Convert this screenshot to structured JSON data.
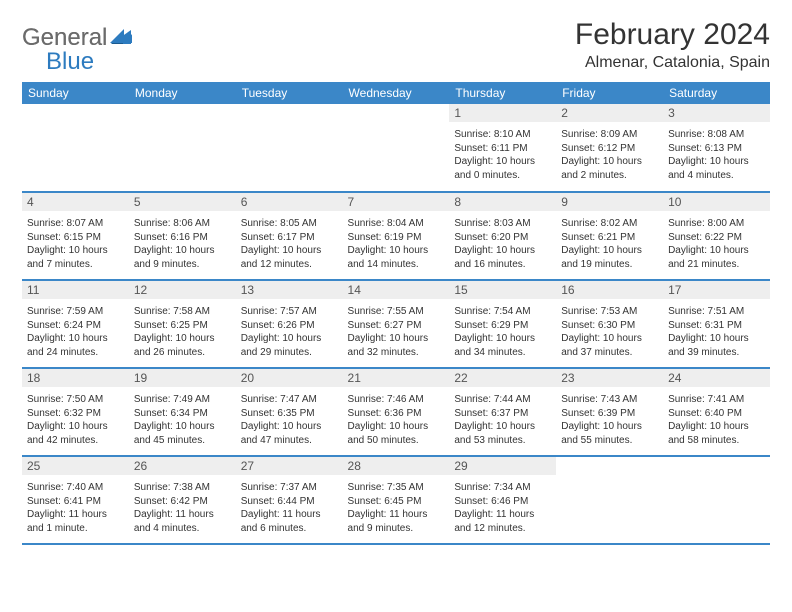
{
  "logo": {
    "text1": "General",
    "text2": "Blue"
  },
  "title": "February 2024",
  "location": "Almenar, Catalonia, Spain",
  "colors": {
    "header_bg": "#3b87c8",
    "header_text": "#ffffff",
    "daynum_bg": "#eeeeee",
    "border": "#3b87c8",
    "logo_gray": "#6b6b6b",
    "logo_blue": "#2d7bbf",
    "body_text": "#333333"
  },
  "day_names": [
    "Sunday",
    "Monday",
    "Tuesday",
    "Wednesday",
    "Thursday",
    "Friday",
    "Saturday"
  ],
  "weeks": [
    [
      null,
      null,
      null,
      null,
      {
        "n": "1",
        "sr": "Sunrise: 8:10 AM",
        "ss": "Sunset: 6:11 PM",
        "d1": "Daylight: 10 hours",
        "d2": "and 0 minutes."
      },
      {
        "n": "2",
        "sr": "Sunrise: 8:09 AM",
        "ss": "Sunset: 6:12 PM",
        "d1": "Daylight: 10 hours",
        "d2": "and 2 minutes."
      },
      {
        "n": "3",
        "sr": "Sunrise: 8:08 AM",
        "ss": "Sunset: 6:13 PM",
        "d1": "Daylight: 10 hours",
        "d2": "and 4 minutes."
      }
    ],
    [
      {
        "n": "4",
        "sr": "Sunrise: 8:07 AM",
        "ss": "Sunset: 6:15 PM",
        "d1": "Daylight: 10 hours",
        "d2": "and 7 minutes."
      },
      {
        "n": "5",
        "sr": "Sunrise: 8:06 AM",
        "ss": "Sunset: 6:16 PM",
        "d1": "Daylight: 10 hours",
        "d2": "and 9 minutes."
      },
      {
        "n": "6",
        "sr": "Sunrise: 8:05 AM",
        "ss": "Sunset: 6:17 PM",
        "d1": "Daylight: 10 hours",
        "d2": "and 12 minutes."
      },
      {
        "n": "7",
        "sr": "Sunrise: 8:04 AM",
        "ss": "Sunset: 6:19 PM",
        "d1": "Daylight: 10 hours",
        "d2": "and 14 minutes."
      },
      {
        "n": "8",
        "sr": "Sunrise: 8:03 AM",
        "ss": "Sunset: 6:20 PM",
        "d1": "Daylight: 10 hours",
        "d2": "and 16 minutes."
      },
      {
        "n": "9",
        "sr": "Sunrise: 8:02 AM",
        "ss": "Sunset: 6:21 PM",
        "d1": "Daylight: 10 hours",
        "d2": "and 19 minutes."
      },
      {
        "n": "10",
        "sr": "Sunrise: 8:00 AM",
        "ss": "Sunset: 6:22 PM",
        "d1": "Daylight: 10 hours",
        "d2": "and 21 minutes."
      }
    ],
    [
      {
        "n": "11",
        "sr": "Sunrise: 7:59 AM",
        "ss": "Sunset: 6:24 PM",
        "d1": "Daylight: 10 hours",
        "d2": "and 24 minutes."
      },
      {
        "n": "12",
        "sr": "Sunrise: 7:58 AM",
        "ss": "Sunset: 6:25 PM",
        "d1": "Daylight: 10 hours",
        "d2": "and 26 minutes."
      },
      {
        "n": "13",
        "sr": "Sunrise: 7:57 AM",
        "ss": "Sunset: 6:26 PM",
        "d1": "Daylight: 10 hours",
        "d2": "and 29 minutes."
      },
      {
        "n": "14",
        "sr": "Sunrise: 7:55 AM",
        "ss": "Sunset: 6:27 PM",
        "d1": "Daylight: 10 hours",
        "d2": "and 32 minutes."
      },
      {
        "n": "15",
        "sr": "Sunrise: 7:54 AM",
        "ss": "Sunset: 6:29 PM",
        "d1": "Daylight: 10 hours",
        "d2": "and 34 minutes."
      },
      {
        "n": "16",
        "sr": "Sunrise: 7:53 AM",
        "ss": "Sunset: 6:30 PM",
        "d1": "Daylight: 10 hours",
        "d2": "and 37 minutes."
      },
      {
        "n": "17",
        "sr": "Sunrise: 7:51 AM",
        "ss": "Sunset: 6:31 PM",
        "d1": "Daylight: 10 hours",
        "d2": "and 39 minutes."
      }
    ],
    [
      {
        "n": "18",
        "sr": "Sunrise: 7:50 AM",
        "ss": "Sunset: 6:32 PM",
        "d1": "Daylight: 10 hours",
        "d2": "and 42 minutes."
      },
      {
        "n": "19",
        "sr": "Sunrise: 7:49 AM",
        "ss": "Sunset: 6:34 PM",
        "d1": "Daylight: 10 hours",
        "d2": "and 45 minutes."
      },
      {
        "n": "20",
        "sr": "Sunrise: 7:47 AM",
        "ss": "Sunset: 6:35 PM",
        "d1": "Daylight: 10 hours",
        "d2": "and 47 minutes."
      },
      {
        "n": "21",
        "sr": "Sunrise: 7:46 AM",
        "ss": "Sunset: 6:36 PM",
        "d1": "Daylight: 10 hours",
        "d2": "and 50 minutes."
      },
      {
        "n": "22",
        "sr": "Sunrise: 7:44 AM",
        "ss": "Sunset: 6:37 PM",
        "d1": "Daylight: 10 hours",
        "d2": "and 53 minutes."
      },
      {
        "n": "23",
        "sr": "Sunrise: 7:43 AM",
        "ss": "Sunset: 6:39 PM",
        "d1": "Daylight: 10 hours",
        "d2": "and 55 minutes."
      },
      {
        "n": "24",
        "sr": "Sunrise: 7:41 AM",
        "ss": "Sunset: 6:40 PM",
        "d1": "Daylight: 10 hours",
        "d2": "and 58 minutes."
      }
    ],
    [
      {
        "n": "25",
        "sr": "Sunrise: 7:40 AM",
        "ss": "Sunset: 6:41 PM",
        "d1": "Daylight: 11 hours",
        "d2": "and 1 minute."
      },
      {
        "n": "26",
        "sr": "Sunrise: 7:38 AM",
        "ss": "Sunset: 6:42 PM",
        "d1": "Daylight: 11 hours",
        "d2": "and 4 minutes."
      },
      {
        "n": "27",
        "sr": "Sunrise: 7:37 AM",
        "ss": "Sunset: 6:44 PM",
        "d1": "Daylight: 11 hours",
        "d2": "and 6 minutes."
      },
      {
        "n": "28",
        "sr": "Sunrise: 7:35 AM",
        "ss": "Sunset: 6:45 PM",
        "d1": "Daylight: 11 hours",
        "d2": "and 9 minutes."
      },
      {
        "n": "29",
        "sr": "Sunrise: 7:34 AM",
        "ss": "Sunset: 6:46 PM",
        "d1": "Daylight: 11 hours",
        "d2": "and 12 minutes."
      },
      null,
      null
    ]
  ]
}
